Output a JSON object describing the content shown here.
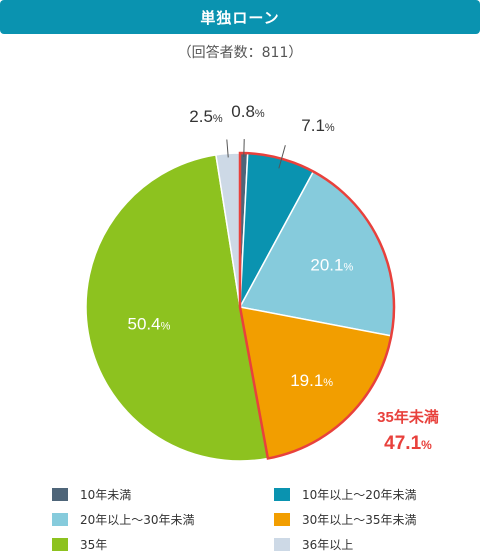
{
  "title": "単独ローン",
  "subtitle": "（回答者数：811）",
  "colors": {
    "title_bg": "#0a93b0",
    "highlight": "#e8413c"
  },
  "chart_data": {
    "type": "pie",
    "unit": "%",
    "slices": [
      {
        "label": "10年未満",
        "value": 0.8,
        "color": "#4e6579"
      },
      {
        "label": "10年以上～20年未満",
        "value": 7.1,
        "color": "#0a93b0"
      },
      {
        "label": "20年以上～30年未満",
        "value": 20.1,
        "color": "#86cbdc"
      },
      {
        "label": "30年以上～35年未満",
        "value": 19.1,
        "color": "#f29e00"
      },
      {
        "label": "35年",
        "value": 50.4,
        "color": "#8dc21f"
      },
      {
        "label": "36年以上",
        "value": 2.5,
        "color": "#cdd9e6"
      }
    ],
    "highlight": {
      "label": "35年未満",
      "value": "47.1",
      "unit": "%"
    }
  }
}
